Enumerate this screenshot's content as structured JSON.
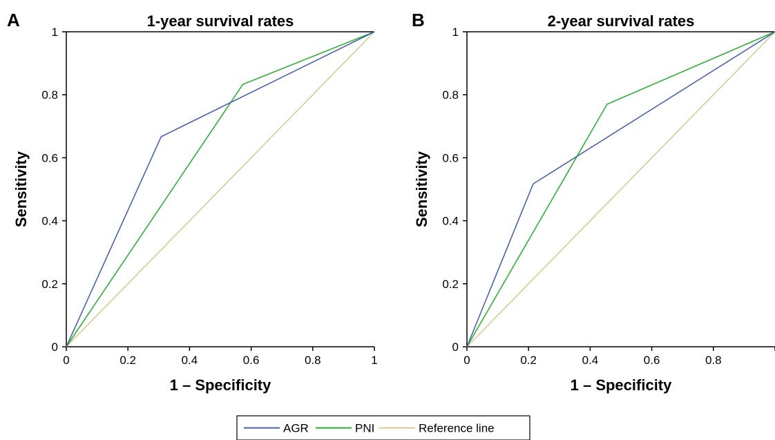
{
  "chart_data": [
    {
      "panel": "A",
      "type": "line",
      "title": "1-year survival rates",
      "xlabel": "1 – Specificity",
      "ylabel": "Sensitivity",
      "xlim": [
        0,
        1
      ],
      "ylim": [
        0,
        1
      ],
      "xticks": [
        "0",
        "0.2",
        "0.4",
        "0.6",
        "0.8",
        "1"
      ],
      "yticks": [
        "0",
        "0.2",
        "0.4",
        "0.6",
        "0.8",
        "1"
      ],
      "grid": false,
      "series": [
        {
          "name": "AGR",
          "color": "#4a63a8",
          "points": [
            [
              0,
              0
            ],
            [
              0.308,
              0.667
            ],
            [
              1,
              1
            ]
          ]
        },
        {
          "name": "PNI",
          "color": "#2db035",
          "points": [
            [
              0,
              0
            ],
            [
              0.573,
              0.833
            ],
            [
              1,
              1
            ]
          ]
        },
        {
          "name": "Reference line",
          "color": "#d4cc96",
          "points": [
            [
              0,
              0
            ],
            [
              1,
              1
            ]
          ]
        }
      ]
    },
    {
      "panel": "B",
      "type": "line",
      "title": "2-year survival rates",
      "xlabel": "1 – Specificity",
      "ylabel": "Sensitivity",
      "xlim": [
        0,
        1
      ],
      "ylim": [
        0,
        1
      ],
      "xticks": [
        "0",
        "0.2",
        "0.4",
        "0.6",
        "0.8",
        ""
      ],
      "yticks": [
        "0",
        "0.2",
        "0.4",
        "0.6",
        "0.8",
        "1"
      ],
      "grid": false,
      "series": [
        {
          "name": "AGR",
          "color": "#4a63a8",
          "points": [
            [
              0,
              0
            ],
            [
              0.215,
              0.517
            ],
            [
              1,
              1
            ]
          ]
        },
        {
          "name": "PNI",
          "color": "#2db035",
          "points": [
            [
              0,
              0
            ],
            [
              0.455,
              0.77
            ],
            [
              1,
              1
            ]
          ]
        },
        {
          "name": "Reference line",
          "color": "#d4cc96",
          "points": [
            [
              0,
              0
            ],
            [
              1,
              1
            ]
          ]
        }
      ]
    }
  ],
  "legend": {
    "position": "bottom-center",
    "items": [
      {
        "label": "AGR",
        "color": "#4a63a8"
      },
      {
        "label": "PNI",
        "color": "#2db035"
      },
      {
        "label": "Reference line",
        "color": "#d4cc96"
      }
    ]
  }
}
